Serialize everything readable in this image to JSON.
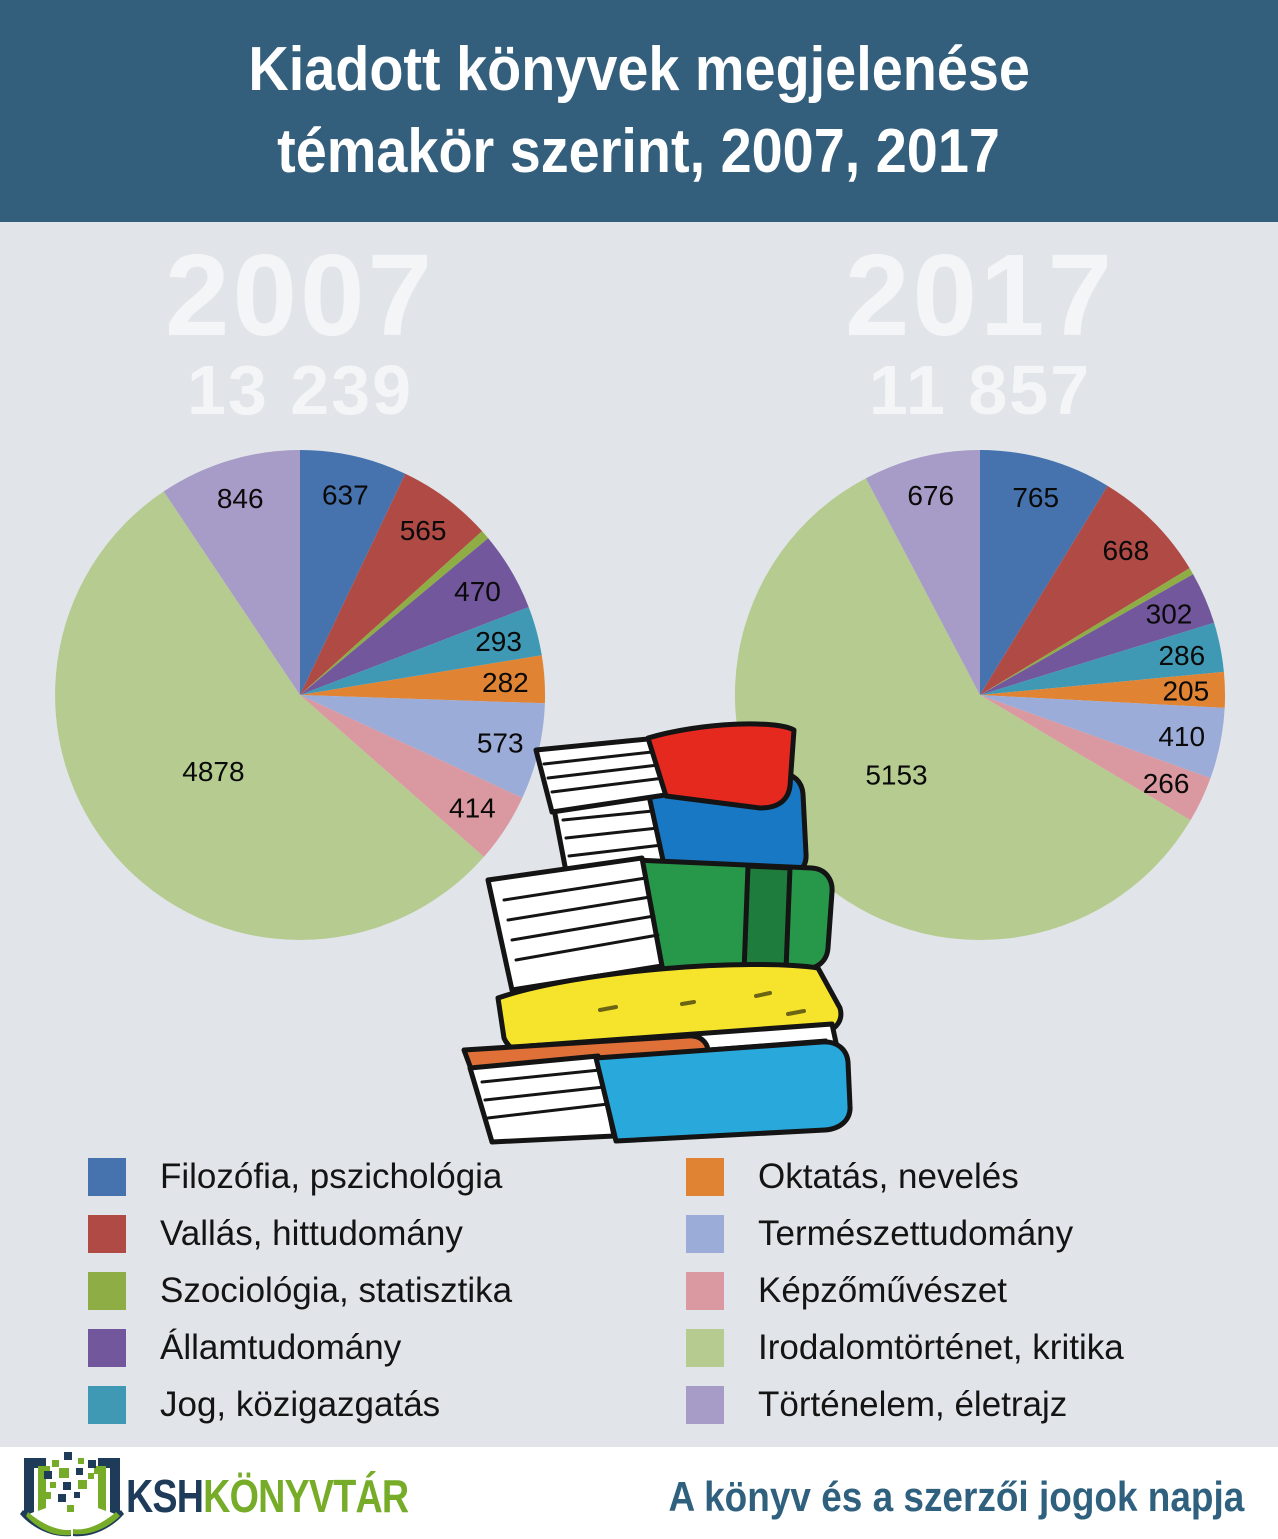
{
  "header": {
    "title_line1": "Kiadott könyvek megjelenése",
    "title_line2": "témakör szerint, 2007, 2017"
  },
  "categories": [
    {
      "name": "Filozófia, pszichológia",
      "color": "#4673ad"
    },
    {
      "name": "Vallás, hittudomány",
      "color": "#b04a45"
    },
    {
      "name": "Szociológia, statisztika",
      "color": "#8ead45"
    },
    {
      "name": "Államtudomány",
      "color": "#72579c"
    },
    {
      "name": "Jog, közigazgatás",
      "color": "#4099b4"
    },
    {
      "name": "Oktatás, nevelés",
      "color": "#e08434"
    },
    {
      "name": "Természettudomány",
      "color": "#9cacd8"
    },
    {
      "name": "Képzőművészet",
      "color": "#da99a1"
    },
    {
      "name": "Irodalomtörténet, kritika",
      "color": "#b5cb90"
    },
    {
      "name": "Történelem, életrajz",
      "color": "#a79bc8"
    }
  ],
  "chart_data": [
    {
      "type": "pie",
      "year": "2007",
      "total": "13 239",
      "direction": "clockwise",
      "start_angle_deg": 0,
      "slices": [
        {
          "category": "Filozófia, pszichológia",
          "value": 637,
          "label": "637"
        },
        {
          "category": "Vallás, hittudomány",
          "value": 565,
          "label": "565"
        },
        {
          "category": "Szociológia, statisztika",
          "value": 55,
          "label": "",
          "value_estimated": true
        },
        {
          "category": "Államtudomány",
          "value": 470,
          "label": "470"
        },
        {
          "category": "Jog, közigazgatás",
          "value": 293,
          "label": "293"
        },
        {
          "category": "Oktatás, nevelés",
          "value": 282,
          "label": "282"
        },
        {
          "category": "Természettudomány",
          "value": 573,
          "label": "573"
        },
        {
          "category": "Képzőművészet",
          "value": 414,
          "label": "414"
        },
        {
          "category": "Irodalomtörténet, kritika",
          "value": 4878,
          "label": "4878"
        },
        {
          "category": "Történelem, életrajz",
          "value": 846,
          "label": "846"
        }
      ]
    },
    {
      "type": "pie",
      "year": "2017",
      "total": "11 857",
      "direction": "clockwise",
      "start_angle_deg": 0,
      "slices": [
        {
          "category": "Filozófia, pszichológia",
          "value": 765,
          "label": "765"
        },
        {
          "category": "Vallás, hittudomány",
          "value": 668,
          "label": "668"
        },
        {
          "category": "Szociológia, statisztika",
          "value": 40,
          "label": "",
          "value_estimated": true
        },
        {
          "category": "Államtudomány",
          "value": 302,
          "label": "302"
        },
        {
          "category": "Jog, közigazgatás",
          "value": 286,
          "label": "286"
        },
        {
          "category": "Oktatás, nevelés",
          "value": 205,
          "label": "205"
        },
        {
          "category": "Természettudomány",
          "value": 410,
          "label": "410"
        },
        {
          "category": "Képzőművészet",
          "value": 266,
          "label": "266"
        },
        {
          "category": "Irodalomtörténet, kritika",
          "value": 5153,
          "label": "5153"
        },
        {
          "category": "Történelem, életrajz",
          "value": 676,
          "label": "676"
        }
      ]
    }
  ],
  "legend": {
    "left_column": [
      "Filozófia, pszichológia",
      "Vallás, hittudomány",
      "Szociológia, statisztika",
      "Államtudomány",
      "Jog, közigazgatás"
    ],
    "right_column": [
      "Oktatás, nevelés",
      "Természettudomány",
      "Képzőművészet",
      "Irodalomtörténet, kritika",
      "Történelem, életrajz"
    ]
  },
  "footer": {
    "logo_text_1": "KSH",
    "logo_text_2": "KÖNYVTÁR",
    "tagline": "A könyv és a szerzői jogok napja"
  },
  "colors": {
    "header_bg": "#345f7c",
    "page_bg": "#e1e5e9",
    "footer_bg": "#ffffff",
    "year_text": "#f3f5f7",
    "tagline_text": "#2f617f",
    "logo_navy": "#1e3c5a",
    "logo_green": "#76ac28"
  }
}
